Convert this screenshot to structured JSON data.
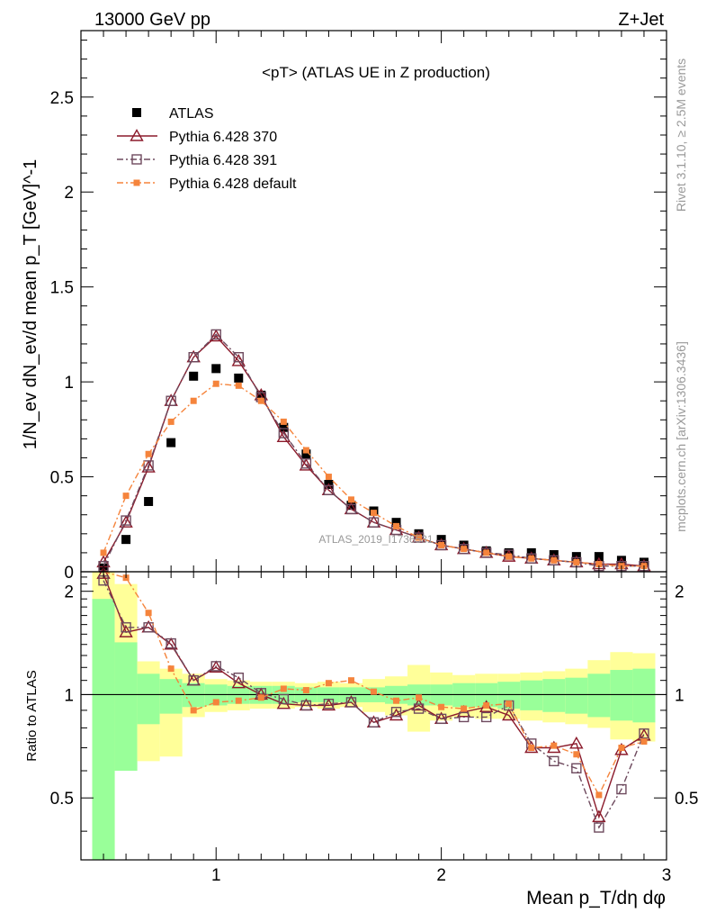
{
  "header": {
    "left": "13000 GeV pp",
    "right": "Z+Jet"
  },
  "side": {
    "rivet": "Rivet 3.1.10, ≥ 2.5M events",
    "mcplots": "mcplots.cern.ch [arXiv:1306.3436]"
  },
  "watermark": "ATLAS_2019_I1736531",
  "chart_data": [
    {
      "type": "scatter",
      "panel": "main",
      "title": "<pT> (ATLAS UE in Z production)",
      "ylabel": "1/N_ev dN_ev/d mean p_T [GeV]^-1",
      "xlim": [
        0.4,
        3.0
      ],
      "ylim": [
        0,
        2.85
      ],
      "yticks": [
        "0",
        "0.5",
        "1",
        "1.5",
        "2",
        "2.5"
      ],
      "xticks": [
        "1",
        "2",
        "3"
      ],
      "x": [
        0.5,
        0.6,
        0.7,
        0.8,
        0.9,
        1.0,
        1.1,
        1.2,
        1.3,
        1.4,
        1.5,
        1.6,
        1.7,
        1.8,
        1.9,
        2.0,
        2.1,
        2.2,
        2.3,
        2.4,
        2.5,
        2.6,
        2.7,
        2.8,
        2.9
      ],
      "legend_position": "top-left",
      "series": [
        {
          "name": "ATLAS",
          "color": "#000000",
          "marker": "square-filled",
          "values": [
            0.02,
            0.17,
            0.37,
            0.68,
            1.03,
            1.07,
            1.02,
            0.93,
            0.76,
            0.62,
            0.46,
            0.35,
            0.32,
            0.26,
            0.2,
            0.17,
            0.14,
            0.11,
            0.1,
            0.1,
            0.09,
            0.08,
            0.08,
            0.06,
            0.05
          ]
        },
        {
          "name": "Pythia 6.428 370",
          "color": "#8b1a2b",
          "marker": "triangle-open",
          "line": "solid",
          "values": [
            0.05,
            0.26,
            0.55,
            0.9,
            1.13,
            1.24,
            1.11,
            0.93,
            0.71,
            0.56,
            0.43,
            0.33,
            0.26,
            0.22,
            0.18,
            0.14,
            0.12,
            0.1,
            0.08,
            0.07,
            0.06,
            0.05,
            0.04,
            0.04,
            0.03
          ]
        },
        {
          "name": "Pythia 6.428 391",
          "color": "#6e4a5e",
          "marker": "square-open",
          "line": "dashdot",
          "values": [
            0.03,
            0.27,
            0.56,
            0.9,
            1.13,
            1.25,
            1.13,
            0.92,
            0.73,
            0.57,
            0.43,
            0.33,
            0.26,
            0.22,
            0.18,
            0.14,
            0.12,
            0.1,
            0.09,
            0.07,
            0.06,
            0.05,
            0.03,
            0.03,
            0.03
          ]
        },
        {
          "name": "Pythia 6.428 default",
          "color": "#f5843c",
          "marker": "square-filled-small",
          "line": "dashdot",
          "values": [
            0.1,
            0.4,
            0.62,
            0.79,
            0.9,
            0.99,
            0.98,
            0.9,
            0.79,
            0.64,
            0.5,
            0.38,
            0.31,
            0.24,
            0.18,
            0.14,
            0.12,
            0.1,
            0.08,
            0.07,
            0.06,
            0.05,
            0.04,
            0.03,
            0.03
          ]
        }
      ]
    },
    {
      "type": "line",
      "panel": "ratio",
      "xlabel": "Mean p_T/dη dφ",
      "ylabel": "Ratio to ATLAS",
      "xlim": [
        0.4,
        3.0
      ],
      "ylim": [
        0.33,
        2.28
      ],
      "yticks": [
        "0.5",
        "1",
        "2"
      ],
      "x": [
        0.5,
        0.6,
        0.7,
        0.8,
        0.9,
        1.0,
        1.1,
        1.2,
        1.3,
        1.4,
        1.5,
        1.6,
        1.7,
        1.8,
        1.9,
        2.0,
        2.1,
        2.2,
        2.3,
        2.4,
        2.5,
        2.6,
        2.7,
        2.8,
        2.9
      ],
      "band_green": {
        "lo": [
          0.3,
          0.6,
          0.82,
          0.88,
          0.92,
          0.93,
          0.94,
          0.94,
          0.94,
          0.95,
          0.95,
          0.95,
          0.95,
          0.94,
          0.93,
          0.93,
          0.92,
          0.92,
          0.91,
          0.9,
          0.89,
          0.88,
          0.86,
          0.84,
          0.83
        ],
        "hi": [
          1.9,
          1.42,
          1.15,
          1.11,
          1.08,
          1.07,
          1.06,
          1.06,
          1.06,
          1.05,
          1.05,
          1.05,
          1.05,
          1.06,
          1.07,
          1.07,
          1.08,
          1.08,
          1.09,
          1.1,
          1.11,
          1.12,
          1.15,
          1.18,
          1.19
        ]
      },
      "band_yellow": {
        "lo": [
          0.3,
          0.6,
          0.64,
          0.66,
          0.86,
          0.89,
          0.9,
          0.91,
          0.91,
          0.92,
          0.91,
          0.92,
          0.89,
          0.87,
          0.78,
          0.84,
          0.86,
          0.85,
          0.85,
          0.84,
          0.83,
          0.82,
          0.8,
          0.74,
          0.73
        ],
        "hi": [
          2.28,
          2.1,
          1.25,
          1.19,
          1.15,
          1.11,
          1.1,
          1.09,
          1.09,
          1.08,
          1.09,
          1.08,
          1.11,
          1.13,
          1.22,
          1.16,
          1.14,
          1.15,
          1.15,
          1.16,
          1.17,
          1.19,
          1.26,
          1.33,
          1.32
        ]
      },
      "reference": 1,
      "series": [
        {
          "name": "Pythia 6.428 370",
          "color": "#8b1a2b",
          "marker": "triangle-open",
          "line": "solid",
          "values": [
            2.25,
            1.52,
            1.57,
            1.4,
            1.1,
            1.2,
            1.08,
            1.0,
            0.94,
            0.93,
            0.93,
            0.95,
            0.83,
            0.87,
            0.93,
            0.85,
            0.89,
            0.92,
            0.87,
            0.7,
            0.7,
            0.72,
            0.44,
            0.69,
            0.76
          ]
        },
        {
          "name": "Pythia 6.428 391",
          "color": "#6e4a5e",
          "marker": "square-open",
          "line": "dashdot",
          "values": [
            2.15,
            1.57,
            1.57,
            1.41,
            1.1,
            1.21,
            1.12,
            1.01,
            0.97,
            0.93,
            0.94,
            0.95,
            0.83,
            0.89,
            0.91,
            0.85,
            0.86,
            0.86,
            0.93,
            0.72,
            0.64,
            0.61,
            0.41,
            0.53,
            0.77
          ]
        },
        {
          "name": "Pythia 6.428 default",
          "color": "#f5843c",
          "marker": "square-filled-small",
          "line": "dashdot",
          "values": [
            2.3,
            2.19,
            1.73,
            1.19,
            0.9,
            0.95,
            0.96,
            0.98,
            1.04,
            1.03,
            1.08,
            1.1,
            1.02,
            0.96,
            0.98,
            0.92,
            0.91,
            0.93,
            0.94,
            0.7,
            0.71,
            0.67,
            0.51,
            0.7,
            0.73
          ]
        }
      ]
    }
  ]
}
